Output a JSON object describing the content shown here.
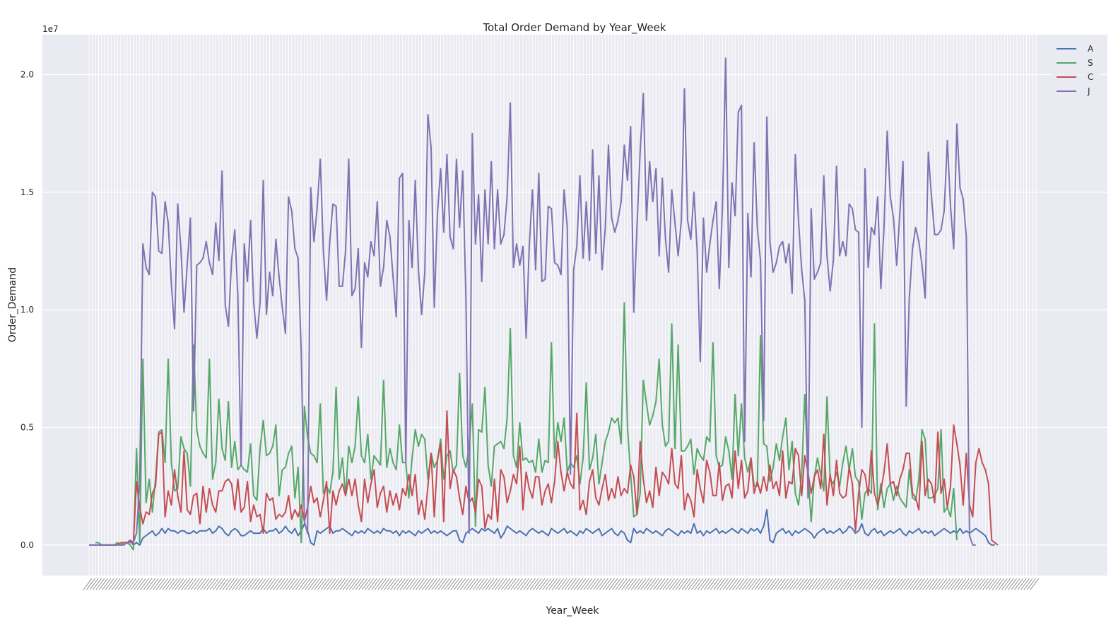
{
  "chart_data": {
    "type": "line",
    "title": "Total Order Demand by Year_Week",
    "xlabel": "Year_Week",
    "ylabel": "Order_Demand",
    "y_offset_label": "1e7",
    "y_scale": 10000000,
    "ylim": [
      -0.13,
      2.17
    ],
    "yticks": [
      0.0,
      0.5,
      1.0,
      1.5,
      2.0
    ],
    "ytick_labels": [
      "0.0",
      "0.5",
      "1.0",
      "1.5",
      "2.0"
    ],
    "grid": true,
    "legend_position": "top-right",
    "background": "#EAEAF2",
    "x_category_count": 300,
    "x_tick_labels_note": "",
    "series": [
      {
        "name": "A",
        "color": "#4C72B0",
        "start_index": 0,
        "values": [
          0.0,
          0.0,
          0.0,
          0.0,
          0.0,
          0.0,
          0.0,
          0.0,
          0.0,
          0.01,
          0.0,
          0.01,
          0.01,
          0.02,
          0.0,
          0.01,
          0.0,
          0.03,
          0.04,
          0.05,
          0.06,
          0.04,
          0.05,
          0.07,
          0.05,
          0.07,
          0.06,
          0.06,
          0.05,
          0.06,
          0.06,
          0.05,
          0.05,
          0.06,
          0.05,
          0.06,
          0.06,
          0.06,
          0.07,
          0.05,
          0.06,
          0.08,
          0.07,
          0.05,
          0.04,
          0.06,
          0.07,
          0.06,
          0.04,
          0.04,
          0.05,
          0.06,
          0.05,
          0.05,
          0.05,
          0.07,
          0.05,
          0.06,
          0.06,
          0.07,
          0.05,
          0.06,
          0.08,
          0.06,
          0.05,
          0.07,
          0.04,
          0.06,
          0.09,
          0.06,
          0.01,
          0.0,
          0.06,
          0.05,
          0.06,
          0.07,
          0.08,
          0.05,
          0.06,
          0.06,
          0.07,
          0.06,
          0.05,
          0.04,
          0.06,
          0.05,
          0.06,
          0.05,
          0.07,
          0.06,
          0.05,
          0.06,
          0.05,
          0.07,
          0.06,
          0.06,
          0.05,
          0.06,
          0.04,
          0.06,
          0.05,
          0.06,
          0.05,
          0.04,
          0.06,
          0.05,
          0.06,
          0.07,
          0.05,
          0.06,
          0.05,
          0.06,
          0.05,
          0.04,
          0.05,
          0.06,
          0.06,
          0.02,
          0.01,
          0.05,
          0.06,
          0.07,
          0.06,
          0.05,
          0.07,
          0.06,
          0.07,
          0.06,
          0.05,
          0.07,
          0.03,
          0.05,
          0.08,
          0.07,
          0.06,
          0.05,
          0.06,
          0.05,
          0.04,
          0.06,
          0.07,
          0.06,
          0.05,
          0.06,
          0.05,
          0.04,
          0.07,
          0.06,
          0.05,
          0.06,
          0.07,
          0.05,
          0.06,
          0.05,
          0.04,
          0.06,
          0.05,
          0.07,
          0.06,
          0.05,
          0.06,
          0.07,
          0.04,
          0.05,
          0.06,
          0.07,
          0.05,
          0.04,
          0.06,
          0.05,
          0.02,
          0.01,
          0.07,
          0.05,
          0.06,
          0.05,
          0.07,
          0.06,
          0.05,
          0.06,
          0.05,
          0.04,
          0.06,
          0.07,
          0.06,
          0.05,
          0.04,
          0.06,
          0.05,
          0.06,
          0.05,
          0.09,
          0.05,
          0.06,
          0.04,
          0.06,
          0.05,
          0.06,
          0.07,
          0.05,
          0.06,
          0.05,
          0.06,
          0.07,
          0.06,
          0.05,
          0.07,
          0.06,
          0.05,
          0.07,
          0.06,
          0.07,
          0.05,
          0.08,
          0.15,
          0.02,
          0.01,
          0.05,
          0.06,
          0.07,
          0.05,
          0.06,
          0.04,
          0.06,
          0.05,
          0.06,
          0.07,
          0.06,
          0.05,
          0.03,
          0.05,
          0.06,
          0.07,
          0.05,
          0.06,
          0.05,
          0.06,
          0.07,
          0.05,
          0.06,
          0.08,
          0.07,
          0.05,
          0.06,
          0.09,
          0.05,
          0.04,
          0.06,
          0.07,
          0.05,
          0.06,
          0.04,
          0.05,
          0.06,
          0.05,
          0.06,
          0.07,
          0.05,
          0.04,
          0.06,
          0.05,
          0.06,
          0.07,
          0.05,
          0.06,
          0.05,
          0.06,
          0.04,
          0.05,
          0.06,
          0.07,
          0.06,
          0.05,
          0.06,
          0.05,
          0.07,
          0.05,
          0.06,
          0.05,
          0.06,
          0.07,
          0.06,
          0.05,
          0.04,
          0.01,
          0.0,
          0.0
        ]
      },
      {
        "name": "S",
        "color": "#55A868",
        "start_index": 2,
        "values": [
          0.01,
          0.01,
          0.0,
          0.0,
          0.0,
          0.0,
          0.0,
          0.01,
          0.0,
          0.01,
          0.01,
          0.0,
          -0.02,
          0.41,
          0.01,
          0.79,
          0.18,
          0.28,
          0.14,
          0.28,
          0.48,
          0.49,
          0.35,
          0.79,
          0.35,
          0.23,
          0.24,
          0.46,
          0.41,
          0.39,
          0.25,
          0.85,
          0.49,
          0.42,
          0.39,
          0.37,
          0.79,
          0.28,
          0.35,
          0.62,
          0.41,
          0.36,
          0.61,
          0.33,
          0.44,
          0.32,
          0.34,
          0.32,
          0.31,
          0.43,
          0.21,
          0.19,
          0.41,
          0.53,
          0.38,
          0.39,
          0.42,
          0.51,
          0.21,
          0.32,
          0.33,
          0.39,
          0.42,
          0.2,
          0.33,
          0.01,
          0.59,
          0.46,
          0.39,
          0.38,
          0.35,
          0.6,
          0.22,
          0.25,
          0.22,
          0.31,
          0.67,
          0.28,
          0.37,
          0.21,
          0.42,
          0.35,
          0.42,
          0.63,
          0.38,
          0.35,
          0.47,
          0.28,
          0.38,
          0.36,
          0.34,
          0.7,
          0.33,
          0.41,
          0.35,
          0.32,
          0.51,
          0.35,
          0.35,
          0.2,
          0.37,
          0.49,
          0.42,
          0.47,
          0.45,
          0.28,
          0.39,
          0.33,
          0.36,
          0.45,
          0.28,
          0.38,
          0.4,
          0.31,
          0.34,
          0.73,
          0.38,
          0.33,
          0.42,
          0.6,
          0.08,
          0.49,
          0.48,
          0.67,
          0.34,
          0.25,
          0.42,
          0.43,
          0.44,
          0.41,
          0.54,
          0.92,
          0.38,
          0.33,
          0.52,
          0.36,
          0.37,
          0.35,
          0.36,
          0.31,
          0.45,
          0.31,
          0.36,
          0.35,
          0.86,
          0.37,
          0.52,
          0.44,
          0.54,
          0.31,
          0.35,
          0.33,
          0.38,
          0.26,
          0.37,
          0.69,
          0.32,
          0.37,
          0.47,
          0.26,
          0.35,
          0.44,
          0.48,
          0.54,
          0.52,
          0.54,
          0.43,
          1.03,
          0.5,
          0.3,
          0.12,
          0.13,
          0.22,
          0.7,
          0.6,
          0.51,
          0.55,
          0.61,
          0.79,
          0.51,
          0.42,
          0.44,
          0.94,
          0.41,
          0.85,
          0.4,
          0.4,
          0.42,
          0.45,
          0.3,
          0.41,
          0.38,
          0.36,
          0.46,
          0.44,
          0.86,
          0.38,
          0.33,
          0.34,
          0.46,
          0.4,
          0.28,
          0.64,
          0.38,
          0.6,
          0.37,
          0.31,
          0.37,
          0.25,
          0.25,
          0.89,
          0.43,
          0.42,
          0.27,
          0.33,
          0.43,
          0.36,
          0.46,
          0.54,
          0.32,
          0.44,
          0.22,
          0.17,
          0.3,
          0.64,
          0.31,
          0.1,
          0.29,
          0.37,
          0.3,
          0.23,
          0.63,
          0.28,
          0.26,
          0.31,
          0.25,
          0.35,
          0.42,
          0.32,
          0.41,
          0.29,
          0.27,
          0.11,
          0.22,
          0.24,
          0.22,
          0.94,
          0.15,
          0.26,
          0.16,
          0.24,
          0.26,
          0.19,
          0.25,
          0.2,
          0.18,
          0.16,
          0.32,
          0.2,
          0.19,
          0.28,
          0.49,
          0.45,
          0.2,
          0.2,
          0.21,
          0.24,
          0.49,
          0.14,
          0.16,
          0.12,
          0.24,
          0.02
        ]
      },
      {
        "name": "C",
        "color": "#C44E52",
        "start_index": 3,
        "values": [
          0.0,
          0.0,
          0.0,
          0.0,
          0.0,
          0.0,
          0.0,
          0.01,
          0.01,
          0.01,
          0.02,
          0.01,
          0.27,
          0.16,
          0.09,
          0.14,
          0.13,
          0.22,
          0.25,
          0.47,
          0.48,
          0.12,
          0.23,
          0.17,
          0.32,
          0.21,
          0.14,
          0.4,
          0.15,
          0.13,
          0.21,
          0.22,
          0.09,
          0.25,
          0.14,
          0.24,
          0.17,
          0.14,
          0.23,
          0.23,
          0.27,
          0.28,
          0.26,
          0.15,
          0.28,
          0.14,
          0.16,
          0.27,
          0.1,
          0.17,
          0.12,
          0.13,
          0.05,
          0.22,
          0.19,
          0.2,
          0.11,
          0.13,
          0.12,
          0.14,
          0.21,
          0.11,
          0.15,
          0.12,
          0.17,
          0.1,
          0.16,
          0.25,
          0.18,
          0.2,
          0.12,
          0.19,
          0.27,
          0.05,
          0.23,
          0.17,
          0.23,
          0.26,
          0.21,
          0.28,
          0.21,
          0.28,
          0.17,
          0.1,
          0.28,
          0.18,
          0.26,
          0.32,
          0.16,
          0.22,
          0.25,
          0.14,
          0.23,
          0.17,
          0.22,
          0.15,
          0.24,
          0.21,
          0.3,
          0.21,
          0.3,
          0.13,
          0.19,
          0.11,
          0.25,
          0.39,
          0.12,
          0.36,
          0.43,
          0.1,
          0.57,
          0.24,
          0.32,
          0.29,
          0.2,
          0.13,
          0.25,
          0.18,
          0.2,
          0.14,
          0.28,
          0.25,
          0.07,
          0.13,
          0.11,
          0.28,
          0.1,
          0.32,
          0.29,
          0.18,
          0.23,
          0.3,
          0.26,
          0.42,
          0.15,
          0.31,
          0.24,
          0.2,
          0.29,
          0.29,
          0.17,
          0.23,
          0.26,
          0.18,
          0.27,
          0.44,
          0.31,
          0.23,
          0.31,
          0.26,
          0.24,
          0.56,
          0.15,
          0.19,
          0.13,
          0.27,
          0.32,
          0.2,
          0.17,
          0.24,
          0.3,
          0.19,
          0.24,
          0.2,
          0.29,
          0.21,
          0.24,
          0.22,
          0.34,
          0.29,
          0.13,
          0.44,
          0.28,
          0.18,
          0.23,
          0.16,
          0.33,
          0.21,
          0.31,
          0.29,
          0.26,
          0.41,
          0.26,
          0.24,
          0.38,
          0.15,
          0.22,
          0.19,
          0.12,
          0.32,
          0.24,
          0.18,
          0.36,
          0.31,
          0.21,
          0.21,
          0.35,
          0.19,
          0.25,
          0.26,
          0.2,
          0.4,
          0.24,
          0.36,
          0.2,
          0.23,
          0.37,
          0.22,
          0.27,
          0.22,
          0.29,
          0.23,
          0.34,
          0.24,
          0.27,
          0.21,
          0.4,
          0.2,
          0.27,
          0.26,
          0.41,
          0.38,
          0.21,
          0.38,
          0.31,
          0.22,
          0.29,
          0.32,
          0.24,
          0.47,
          0.17,
          0.3,
          0.21,
          0.36,
          0.22,
          0.2,
          0.21,
          0.33,
          0.26,
          0.06,
          0.22,
          0.32,
          0.3,
          0.21,
          0.4,
          0.22,
          0.17,
          0.23,
          0.31,
          0.43,
          0.26,
          0.27,
          0.21,
          0.28,
          0.32,
          0.39,
          0.39,
          0.22,
          0.2,
          0.15,
          0.44,
          0.21,
          0.28,
          0.26,
          0.18,
          0.48,
          0.22,
          0.28,
          0.16,
          0.25,
          0.51,
          0.43,
          0.34,
          0.17,
          0.39,
          0.17,
          0.12,
          0.35,
          0.41,
          0.35,
          0.32,
          0.26,
          0.02,
          0.01,
          0.0
        ]
      },
      {
        "name": "J",
        "color": "#8172B2",
        "start_index": 0,
        "values": [
          0.0,
          0.0,
          0.0,
          0.0,
          0.0,
          0.0,
          0.0,
          0.0,
          0.0,
          0.0,
          0.0,
          0.0,
          0.01,
          0.01,
          0.01,
          0.05,
          0.27,
          1.28,
          1.18,
          1.15,
          1.5,
          1.48,
          1.25,
          1.24,
          1.46,
          1.37,
          1.11,
          0.92,
          1.45,
          1.26,
          0.99,
          1.19,
          1.39,
          0.57,
          1.19,
          1.2,
          1.22,
          1.29,
          1.2,
          1.15,
          1.37,
          1.21,
          1.59,
          1.02,
          0.93,
          1.21,
          1.34,
          1.06,
          0.34,
          1.28,
          1.12,
          1.38,
          1.03,
          0.88,
          1.03,
          1.55,
          0.98,
          1.16,
          1.06,
          1.3,
          1.14,
          1.01,
          0.9,
          1.48,
          1.42,
          1.26,
          1.22,
          0.82,
          0.1,
          0.05,
          1.52,
          1.29,
          1.43,
          1.64,
          1.25,
          1.04,
          1.29,
          1.45,
          1.44,
          1.1,
          1.1,
          1.25,
          1.64,
          1.06,
          1.09,
          1.26,
          0.84,
          1.2,
          1.14,
          1.29,
          1.23,
          1.46,
          1.1,
          1.18,
          1.38,
          1.31,
          1.14,
          0.97,
          1.56,
          1.58,
          0.35,
          1.38,
          1.18,
          1.55,
          1.17,
          0.98,
          1.16,
          1.83,
          1.69,
          1.01,
          1.41,
          1.6,
          1.33,
          1.66,
          1.31,
          1.26,
          1.64,
          1.35,
          1.59,
          1.05,
          0.05,
          1.75,
          1.28,
          1.49,
          1.12,
          1.51,
          1.28,
          1.63,
          1.26,
          1.51,
          1.28,
          1.32,
          1.48,
          1.88,
          1.18,
          1.28,
          1.19,
          1.27,
          0.88,
          1.27,
          1.51,
          1.17,
          1.58,
          1.12,
          1.13,
          1.44,
          1.43,
          1.2,
          1.19,
          1.15,
          1.51,
          1.35,
          0.3,
          1.17,
          1.27,
          1.57,
          1.22,
          1.46,
          1.21,
          1.68,
          1.24,
          1.57,
          1.17,
          1.35,
          1.7,
          1.39,
          1.33,
          1.38,
          1.46,
          1.7,
          1.55,
          1.78,
          0.99,
          1.35,
          1.67,
          1.92,
          1.38,
          1.63,
          1.46,
          1.6,
          1.23,
          1.56,
          1.3,
          1.16,
          1.51,
          1.37,
          1.23,
          1.38,
          1.94,
          1.38,
          1.3,
          1.5,
          1.25,
          0.78,
          1.39,
          1.16,
          1.28,
          1.38,
          1.46,
          1.09,
          1.44,
          2.07,
          1.18,
          1.54,
          1.4,
          1.84,
          1.87,
          0.44,
          1.41,
          1.14,
          1.71,
          1.35,
          1.21,
          0.53,
          1.82,
          1.29,
          1.16,
          1.2,
          1.27,
          1.29,
          1.2,
          1.28,
          1.07,
          1.66,
          1.38,
          1.17,
          1.04,
          0.2,
          1.43,
          1.13,
          1.16,
          1.2,
          1.57,
          1.23,
          1.08,
          1.21,
          1.61,
          1.23,
          1.29,
          1.23,
          1.45,
          1.43,
          1.34,
          1.33,
          0.5,
          1.6,
          1.18,
          1.35,
          1.32,
          1.48,
          1.09,
          1.35,
          1.76,
          1.48,
          1.39,
          1.19,
          1.41,
          1.63,
          0.59,
          1.05,
          1.26,
          1.35,
          1.29,
          1.19,
          1.05,
          1.67,
          1.48,
          1.32,
          1.32,
          1.34,
          1.42,
          1.72,
          1.44,
          1.26,
          1.79,
          1.52,
          1.47,
          1.31,
          0.04,
          0.0,
          0.0
        ]
      }
    ]
  }
}
